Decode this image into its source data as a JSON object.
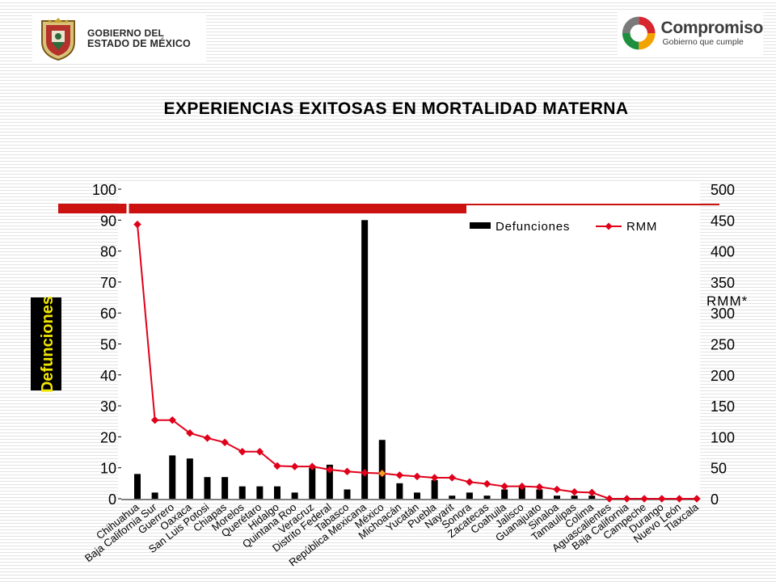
{
  "header": {
    "gov_logo": {
      "line1": "GOBIERNO DEL",
      "line2": "ESTADO DE MÉXICO"
    },
    "brand_logo": {
      "name": "Compromiso",
      "tagline": "Gobierno que cumple"
    }
  },
  "title": "EXPERIENCIAS EXITOSAS EN MORTALIDAD MATERNA",
  "colors": {
    "bar": "#000000",
    "line": "#e0001a",
    "accent_band": "#cc1111",
    "highlight_marker": "#f0a020"
  },
  "chart_data": {
    "type": "bar+line",
    "title": "EXPERIENCIAS EXITOSAS EN MORTALIDAD MATERNA",
    "categories": [
      "Chihuahua",
      "Baja California Sur",
      "Guerrero",
      "Oaxaca",
      "San Luis Potosi",
      "Chiapas",
      "Morelos",
      "Querétaro",
      "Hidalgo",
      "Quintana Roo",
      "Veracruz",
      "Distrito Federal",
      "Tabasco",
      "República Mexicana",
      "México",
      "Michoacán",
      "Yucatán",
      "Puebla",
      "Nayarit",
      "Sonora",
      "Zacatecas",
      "Coahuila",
      "Jalisco",
      "Guanajuato",
      "Sinaloa",
      "Tamaulipas",
      "Colima",
      "Aguascalientes",
      "Baja California",
      "Campeche",
      "Durango",
      "Nuevo León",
      "Tlaxcala"
    ],
    "series": [
      {
        "name": "Defunciones",
        "type": "bar",
        "axis": "left",
        "values": [
          8,
          2,
          14,
          13,
          7,
          7,
          4,
          4,
          4,
          2,
          10,
          11,
          3,
          90,
          19,
          5,
          2,
          6,
          1,
          2,
          1,
          3,
          4,
          3,
          1,
          1,
          1,
          0,
          0,
          0,
          0,
          0,
          0
        ]
      },
      {
        "name": "RMM",
        "type": "line",
        "axis": "right",
        "values": [
          443,
          127,
          127,
          106,
          98,
          91,
          76,
          76,
          53,
          52,
          52,
          47,
          44,
          42,
          41,
          38,
          36,
          34,
          34,
          27,
          24,
          20,
          20,
          19,
          15,
          11,
          10,
          0,
          0,
          0,
          0,
          0,
          0
        ],
        "highlight_index": 14
      }
    ],
    "ylabel_left": "Defunciones",
    "ylabel_right": "RMM*",
    "ylim_left": [
      0,
      100
    ],
    "yticks_left": [
      "0",
      "10",
      "20",
      "30",
      "40",
      "50",
      "60",
      "70",
      "80",
      "90",
      "100"
    ],
    "ylim_right": [
      0,
      500
    ],
    "yticks_right": [
      "0",
      "50",
      "100",
      "150",
      "200",
      "250",
      "300",
      "350",
      "400",
      "450",
      "500"
    ],
    "legend": {
      "position": "top-right",
      "entries": [
        "Defunciones",
        "RMM"
      ]
    },
    "grid": false
  }
}
